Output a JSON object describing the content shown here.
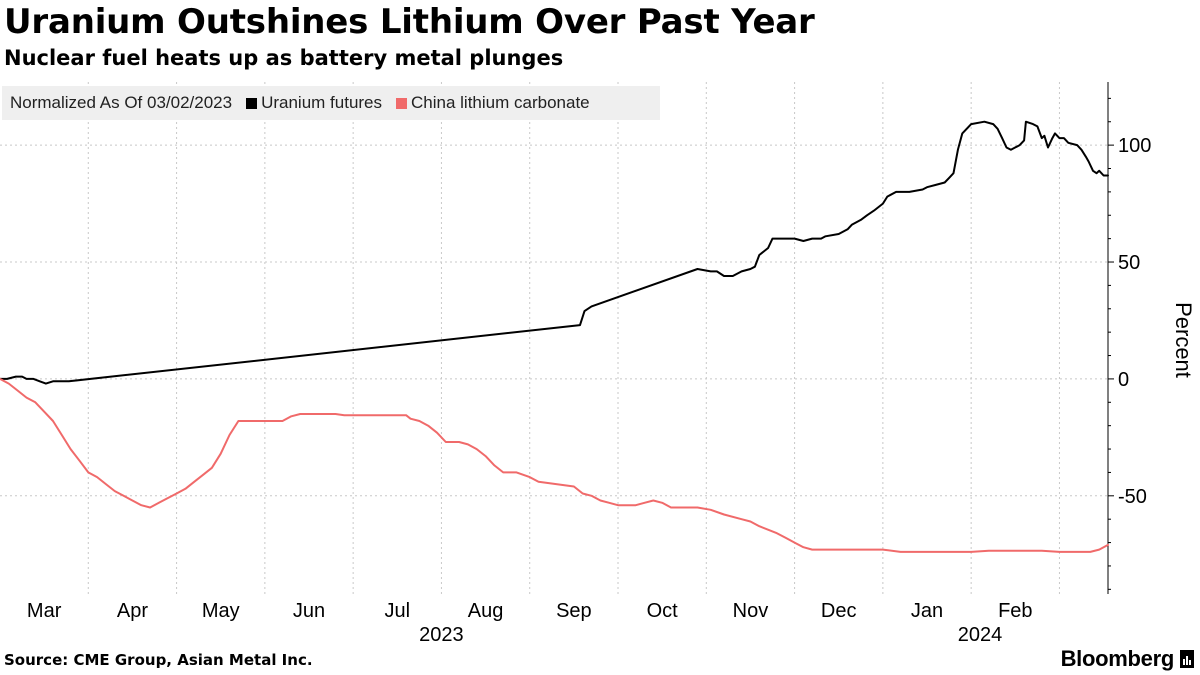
{
  "header": {
    "title": "Uranium Outshines Lithium Over Past Year",
    "subtitle": "Nuclear fuel heats up as battery metal plunges"
  },
  "legend": {
    "normalized_label": "Normalized As Of 03/02/2023",
    "items": [
      {
        "label": "Uranium futures",
        "color": "#000000"
      },
      {
        "label": "China lithium carbonate",
        "color": "#f06a6a"
      }
    ]
  },
  "footer": {
    "source": "Source: CME Group, Asian Metal Inc.",
    "brand": "Bloomberg"
  },
  "chart_data": {
    "type": "line",
    "title": "Uranium Outshines Lithium Over Past Year",
    "subtitle": "Nuclear fuel heats up as battery metal plunges",
    "xlabel": "",
    "ylabel": "Percent",
    "x_unit": "months since Mar 1, 2023",
    "xlim": [
      0,
      12.55
    ],
    "ylim": [
      -92,
      127
    ],
    "yticks": [
      100,
      50,
      0,
      -50
    ],
    "ytick_labels": [
      "100",
      "50",
      "0",
      "-50"
    ],
    "month_ticks": [
      {
        "label": "Mar",
        "at": 0.5
      },
      {
        "label": "Apr",
        "at": 1.5
      },
      {
        "label": "May",
        "at": 2.5
      },
      {
        "label": "Jun",
        "at": 3.5
      },
      {
        "label": "Jul",
        "at": 4.5
      },
      {
        "label": "Aug",
        "at": 5.5
      },
      {
        "label": "Sep",
        "at": 6.5
      },
      {
        "label": "Oct",
        "at": 7.5
      },
      {
        "label": "Nov",
        "at": 8.5
      },
      {
        "label": "Dec",
        "at": 9.5
      },
      {
        "label": "Jan",
        "at": 10.5
      },
      {
        "label": "Feb",
        "at": 11.5
      }
    ],
    "gridlines_x": [
      1,
      2,
      3,
      4,
      5,
      6,
      7,
      8,
      9,
      10,
      11,
      12
    ],
    "year_labels": [
      {
        "label": "2023",
        "at": 5.0
      },
      {
        "label": "2024",
        "at": 11.1
      }
    ],
    "grid": true,
    "legend_position": "top-left",
    "series": [
      {
        "name": "Uranium futures",
        "color": "#000000",
        "points": [
          [
            0.0,
            0
          ],
          [
            0.08,
            0
          ],
          [
            0.18,
            1
          ],
          [
            0.25,
            1
          ],
          [
            0.3,
            0
          ],
          [
            0.38,
            0
          ],
          [
            0.45,
            -1
          ],
          [
            0.52,
            -2
          ],
          [
            0.6,
            -1
          ],
          [
            0.7,
            -1
          ],
          [
            0.78,
            -1
          ],
          [
            6.57,
            23
          ],
          [
            6.62,
            29
          ],
          [
            6.7,
            31
          ],
          [
            7.9,
            47
          ],
          [
            8.05,
            46
          ],
          [
            8.12,
            46
          ],
          [
            8.2,
            44
          ],
          [
            8.3,
            44
          ],
          [
            8.4,
            46
          ],
          [
            8.5,
            47
          ],
          [
            8.55,
            48
          ],
          [
            8.6,
            53
          ],
          [
            8.7,
            56
          ],
          [
            8.75,
            60
          ],
          [
            8.9,
            60
          ],
          [
            9.0,
            60
          ],
          [
            9.1,
            59
          ],
          [
            9.2,
            60
          ],
          [
            9.3,
            60
          ],
          [
            9.35,
            61
          ],
          [
            9.5,
            62
          ],
          [
            9.6,
            64
          ],
          [
            9.65,
            66
          ],
          [
            9.75,
            68
          ],
          [
            9.82,
            70
          ],
          [
            9.9,
            72
          ],
          [
            10.0,
            75
          ],
          [
            10.05,
            78
          ],
          [
            10.15,
            80
          ],
          [
            10.3,
            80
          ],
          [
            10.45,
            81
          ],
          [
            10.5,
            82
          ],
          [
            10.6,
            83
          ],
          [
            10.7,
            84
          ],
          [
            10.75,
            86
          ],
          [
            10.8,
            88
          ],
          [
            10.85,
            98
          ],
          [
            10.9,
            105
          ],
          [
            11.0,
            109
          ],
          [
            11.15,
            110
          ],
          [
            11.25,
            109
          ],
          [
            11.3,
            107
          ],
          [
            11.35,
            103
          ],
          [
            11.4,
            99
          ],
          [
            11.45,
            98
          ],
          [
            11.55,
            100
          ],
          [
            11.6,
            102
          ],
          [
            11.62,
            110
          ],
          [
            11.7,
            109
          ],
          [
            11.75,
            108
          ],
          [
            11.8,
            103
          ],
          [
            11.83,
            104
          ],
          [
            11.87,
            99
          ],
          [
            11.92,
            103
          ],
          [
            11.95,
            105
          ],
          [
            12.0,
            103
          ],
          [
            12.05,
            103
          ],
          [
            12.1,
            101
          ],
          [
            12.2,
            100
          ],
          [
            12.25,
            98
          ],
          [
            12.3,
            95
          ],
          [
            12.33,
            93
          ],
          [
            12.38,
            89
          ],
          [
            12.42,
            88
          ],
          [
            12.45,
            89
          ],
          [
            12.5,
            87
          ],
          [
            12.55,
            87
          ]
        ]
      },
      {
        "name": "China lithium carbonate",
        "color": "#f06a6a",
        "points": [
          [
            0.0,
            0
          ],
          [
            0.1,
            -2
          ],
          [
            0.2,
            -5
          ],
          [
            0.3,
            -8
          ],
          [
            0.4,
            -10
          ],
          [
            0.5,
            -14
          ],
          [
            0.6,
            -18
          ],
          [
            0.7,
            -24
          ],
          [
            0.8,
            -30
          ],
          [
            0.9,
            -35
          ],
          [
            1.0,
            -40
          ],
          [
            1.1,
            -42
          ],
          [
            1.2,
            -45
          ],
          [
            1.3,
            -48
          ],
          [
            1.4,
            -50
          ],
          [
            1.5,
            -52
          ],
          [
            1.6,
            -54
          ],
          [
            1.7,
            -55
          ],
          [
            1.8,
            -53
          ],
          [
            1.9,
            -51
          ],
          [
            2.0,
            -49
          ],
          [
            2.1,
            -47
          ],
          [
            2.2,
            -44
          ],
          [
            2.3,
            -41
          ],
          [
            2.4,
            -38
          ],
          [
            2.5,
            -32
          ],
          [
            2.6,
            -24
          ],
          [
            2.7,
            -18
          ],
          [
            2.8,
            -18
          ],
          [
            3.0,
            -18
          ],
          [
            3.2,
            -18
          ],
          [
            3.3,
            -16
          ],
          [
            3.4,
            -15
          ],
          [
            3.5,
            -15
          ],
          [
            3.7,
            -15
          ],
          [
            3.8,
            -15
          ],
          [
            3.9,
            -15.5
          ],
          [
            4.0,
            -15.5
          ],
          [
            4.2,
            -15.5
          ],
          [
            4.4,
            -15.5
          ],
          [
            4.6,
            -15.5
          ],
          [
            4.65,
            -17
          ],
          [
            4.75,
            -18
          ],
          [
            4.85,
            -20
          ],
          [
            4.95,
            -23
          ],
          [
            5.05,
            -27
          ],
          [
            5.2,
            -27
          ],
          [
            5.3,
            -28
          ],
          [
            5.4,
            -30
          ],
          [
            5.5,
            -33
          ],
          [
            5.6,
            -37
          ],
          [
            5.7,
            -40
          ],
          [
            5.85,
            -40
          ],
          [
            6.0,
            -42
          ],
          [
            6.1,
            -44
          ],
          [
            6.3,
            -45
          ],
          [
            6.5,
            -46
          ],
          [
            6.6,
            -49
          ],
          [
            6.7,
            -50
          ],
          [
            6.8,
            -52
          ],
          [
            6.9,
            -53
          ],
          [
            7.0,
            -54
          ],
          [
            7.2,
            -54
          ],
          [
            7.3,
            -53
          ],
          [
            7.4,
            -52
          ],
          [
            7.5,
            -53
          ],
          [
            7.6,
            -55
          ],
          [
            7.7,
            -55
          ],
          [
            7.9,
            -55
          ],
          [
            8.05,
            -56
          ],
          [
            8.2,
            -58
          ],
          [
            8.4,
            -60
          ],
          [
            8.5,
            -61
          ],
          [
            8.6,
            -63
          ],
          [
            8.8,
            -66
          ],
          [
            8.9,
            -68
          ],
          [
            9.0,
            -70
          ],
          [
            9.1,
            -72
          ],
          [
            9.2,
            -73
          ],
          [
            9.5,
            -73
          ],
          [
            10.0,
            -73
          ],
          [
            10.2,
            -74
          ],
          [
            10.5,
            -74
          ],
          [
            10.8,
            -74
          ],
          [
            11.0,
            -74
          ],
          [
            11.2,
            -73.5
          ],
          [
            11.5,
            -73.5
          ],
          [
            11.8,
            -73.5
          ],
          [
            12.0,
            -74
          ],
          [
            12.2,
            -74
          ],
          [
            12.35,
            -74
          ],
          [
            12.45,
            -73
          ],
          [
            12.55,
            -71
          ]
        ]
      }
    ]
  }
}
